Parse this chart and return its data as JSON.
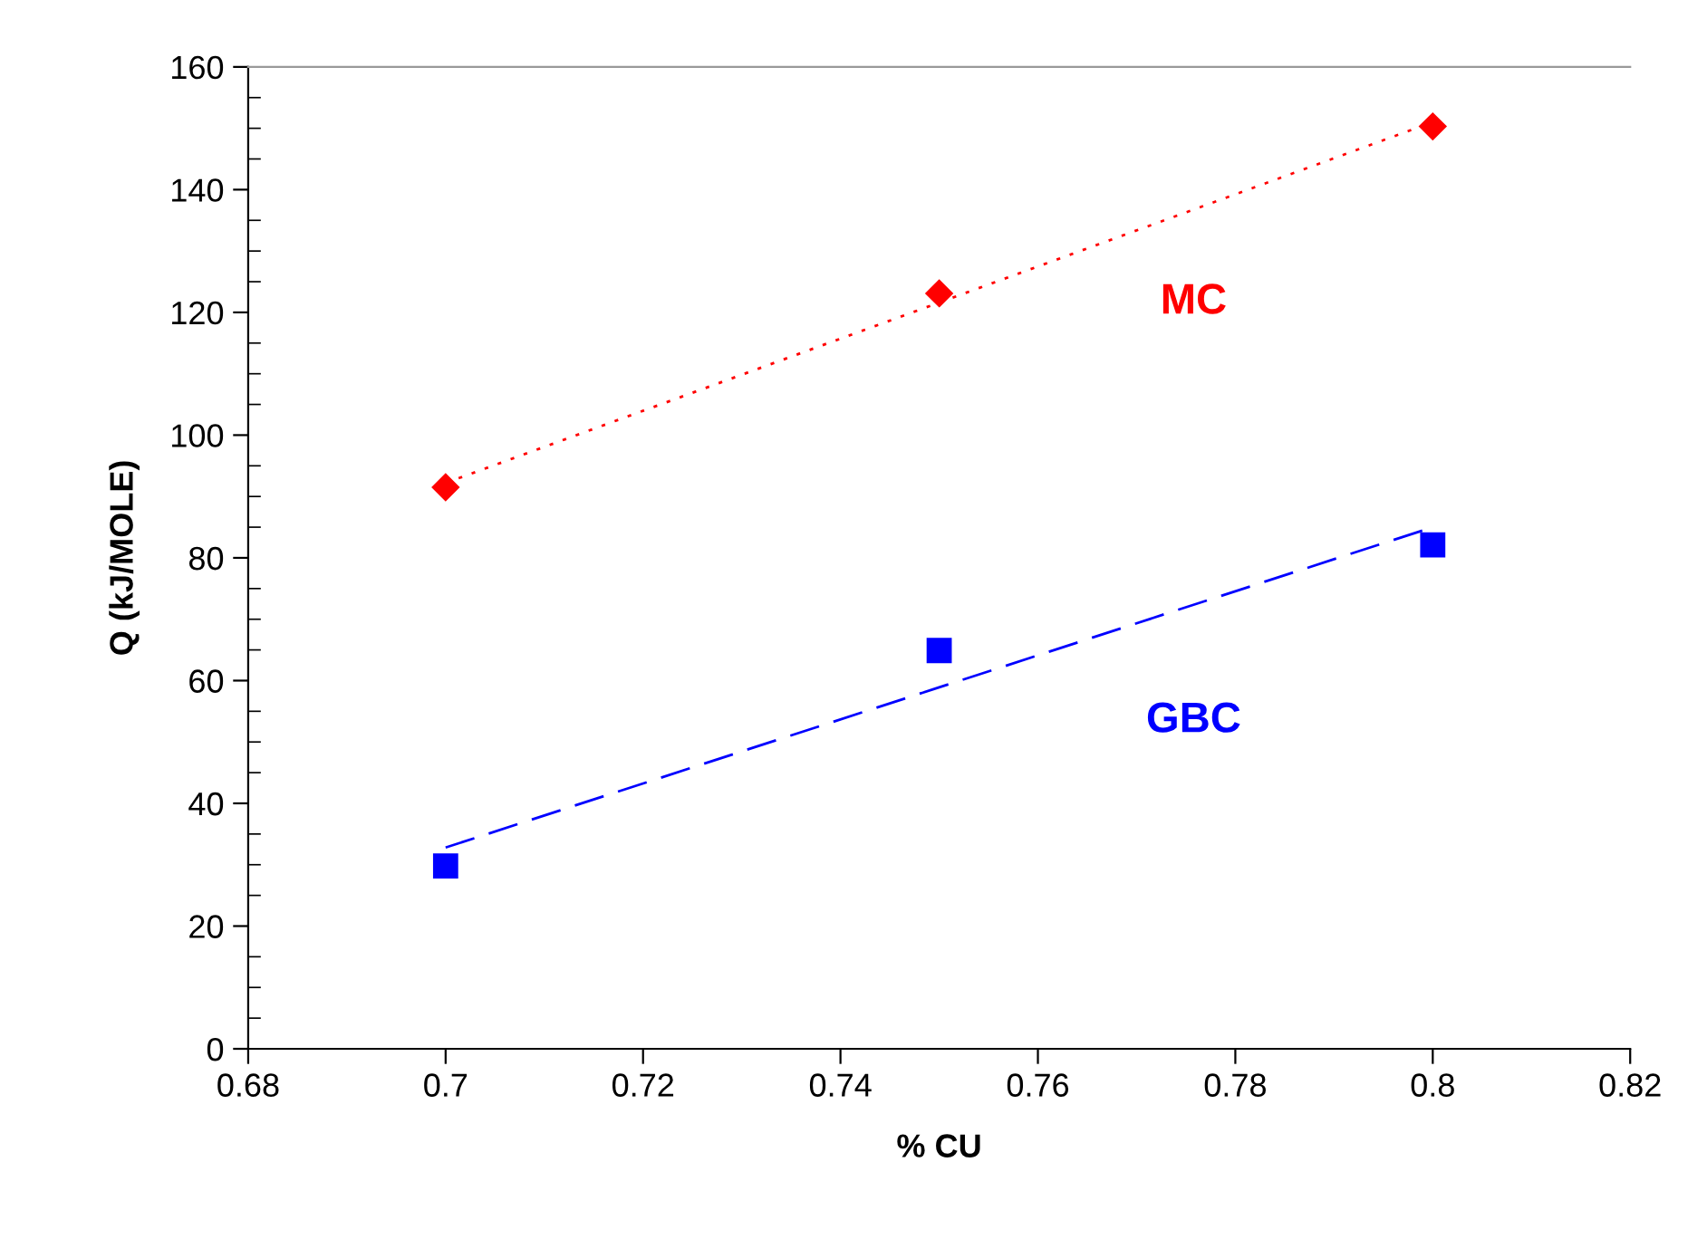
{
  "chart_data": {
    "type": "scatter",
    "xlabel": "% CU",
    "ylabel": "Q (kJ/MOLE)",
    "x": [
      0.7,
      0.75,
      0.8
    ],
    "series": [
      {
        "name": "MC",
        "color": "#ff0000",
        "marker": "diamond",
        "values": [
          91.5,
          123.1,
          150.3
        ]
      },
      {
        "name": "GBC",
        "color": "#0000ff",
        "marker": "square",
        "values": [
          29.8,
          64.9,
          82.1
        ]
      },
      {
        "type": "line",
        "color": "#ff0000",
        "line_style": "dotted",
        "marker": "none",
        "values": [
          92.2,
          121.6,
          151.0
        ]
      },
      {
        "type": "line",
        "color": "#0000ff",
        "line_style": "dashed",
        "marker": "none",
        "values": [
          32.8,
          58.9,
          85.0
        ]
      }
    ],
    "xlim": [
      0.68,
      0.82
    ],
    "xticks": [
      0.68,
      0.7,
      0.72,
      0.74,
      0.76,
      0.78,
      0.8,
      0.82
    ],
    "ylim": [
      0,
      160
    ],
    "yticks": [
      0,
      20,
      40,
      60,
      80,
      100,
      120,
      140,
      160
    ],
    "grid": false,
    "legend": false
  }
}
